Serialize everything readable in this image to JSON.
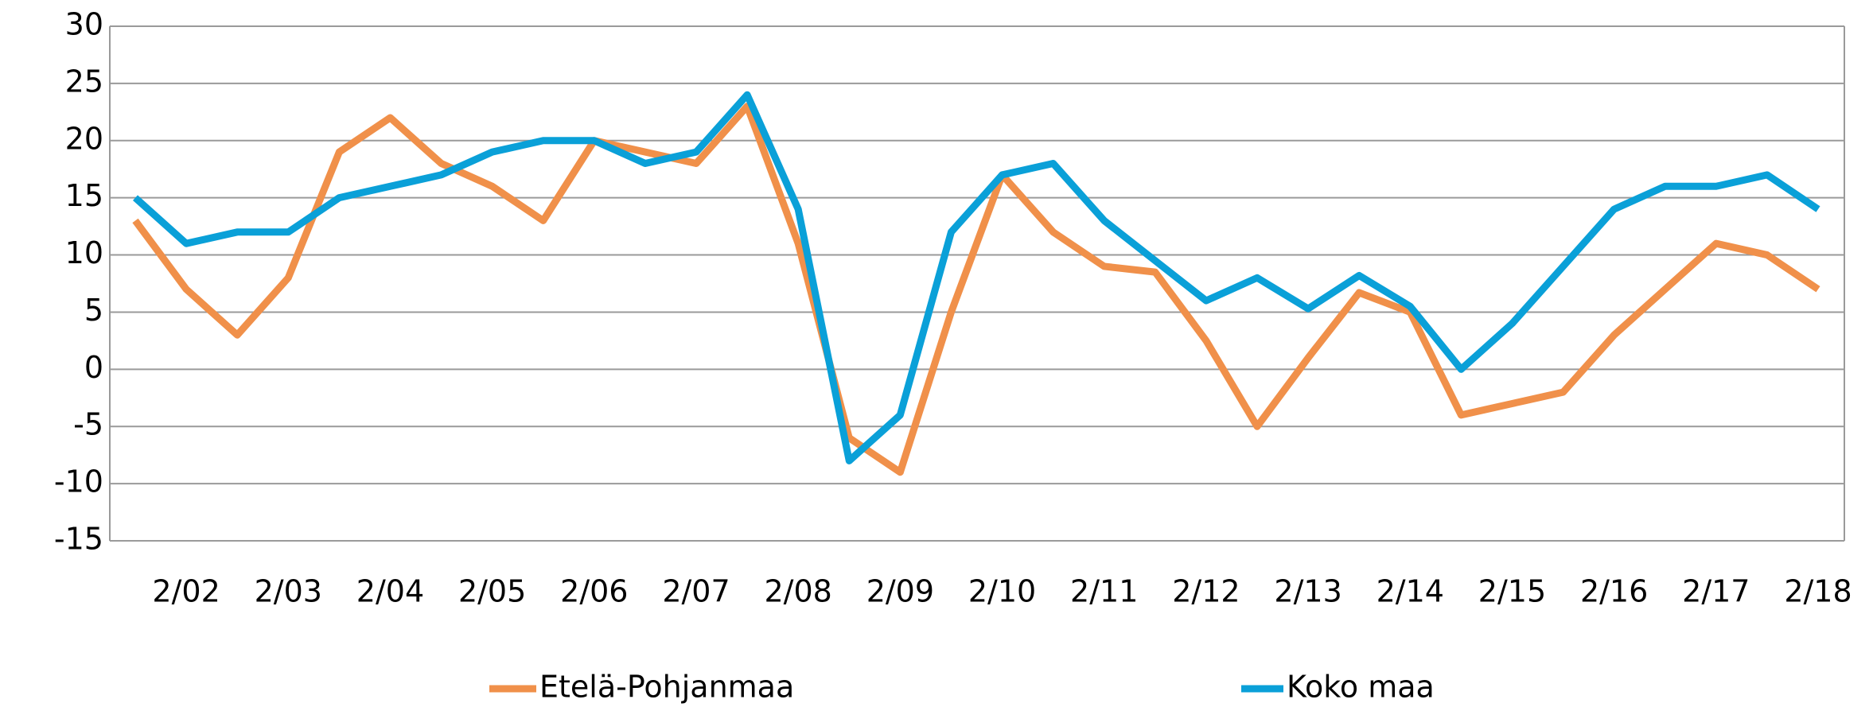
{
  "chart_data": {
    "type": "line",
    "categories": [
      null,
      "2/02",
      null,
      "2/03",
      null,
      "2/04",
      null,
      "2/05",
      null,
      "2/06",
      null,
      "2/07",
      null,
      "2/08",
      null,
      "2/09",
      null,
      "2/10",
      null,
      "2/11",
      null,
      "2/12",
      null,
      "2/13",
      null,
      "2/14",
      null,
      "2/15",
      null,
      "2/16",
      null,
      "2/17",
      null,
      "2/18"
    ],
    "series": [
      {
        "name": "Etelä-Pohjanmaa",
        "color": "#f0904a",
        "values": [
          13,
          7,
          3,
          8,
          19,
          22,
          18,
          16,
          13,
          20,
          19,
          18,
          23,
          11,
          -6,
          -9,
          5,
          17,
          12,
          9,
          8.5,
          2.5,
          -5,
          1,
          6.7,
          5,
          -4,
          -3,
          -2,
          3,
          7,
          11,
          10,
          7
        ]
      },
      {
        "name": "Koko maa",
        "color": "#0aa0d8",
        "values": [
          15,
          11,
          12,
          12,
          15,
          16,
          17,
          19,
          20,
          20,
          18,
          19,
          24,
          14,
          -8,
          -4,
          12,
          17,
          18,
          13,
          9.5,
          6,
          8,
          5.3,
          8.2,
          5.5,
          0,
          4,
          9,
          14,
          16,
          16,
          17,
          14
        ]
      }
    ],
    "ylim": [
      -15,
      30
    ],
    "yticks": [
      -15,
      -10,
      -5,
      0,
      5,
      10,
      15,
      20,
      25,
      30
    ],
    "grid": true
  }
}
